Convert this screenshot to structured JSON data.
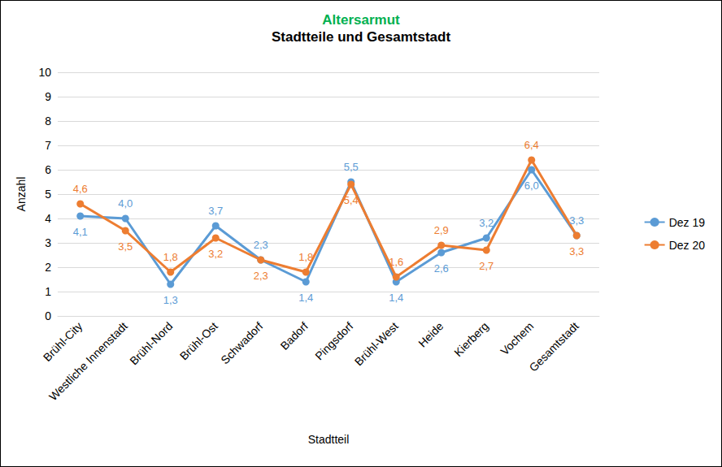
{
  "chart_data": {
    "type": "line",
    "title": "Altersarmut",
    "subtitle": "Stadtteile und Gesamtstadt",
    "x_label": "Stadtteil",
    "y_label": "Anzahl",
    "categories": [
      "Brühl-City",
      "Westliche Innenstadt",
      "Brühl-Nord",
      "Brühl-Ost",
      "Schwadorf",
      "Badorf",
      "Pingsdorf",
      "Brühl-West",
      "Heide",
      "Kierberg",
      "Vochem",
      "Gesamtstadt"
    ],
    "series": [
      {
        "name": "Dez 19",
        "color": "#5b9bd5",
        "marker": "circle",
        "values": [
          4.1,
          4.0,
          1.3,
          3.7,
          2.3,
          1.4,
          5.5,
          1.4,
          2.6,
          3.2,
          6.0,
          3.3
        ],
        "value_labels": [
          "4,1",
          "4,0",
          "1,3",
          "3,7",
          "2,3",
          "1,4",
          "5,5",
          "1,4",
          "2,6",
          "3,2",
          "6,0",
          "3,3"
        ]
      },
      {
        "name": "Dez 20",
        "color": "#ed7d31",
        "marker": "circle",
        "values": [
          4.6,
          3.5,
          1.8,
          3.2,
          2.3,
          1.8,
          5.4,
          1.6,
          2.9,
          2.7,
          6.4,
          3.3
        ],
        "value_labels": [
          "4,6",
          "3,5",
          "1,8",
          "3,2",
          "2,3",
          "1,8",
          "5,4",
          "1,6",
          "2,9",
          "2,7",
          "6,4",
          "3,3"
        ]
      }
    ],
    "ylim": [
      0,
      10
    ],
    "yticks": [
      0,
      1,
      2,
      3,
      4,
      5,
      6,
      7,
      8,
      9,
      10
    ],
    "grid": true,
    "legend": "right",
    "data_labels": true
  }
}
